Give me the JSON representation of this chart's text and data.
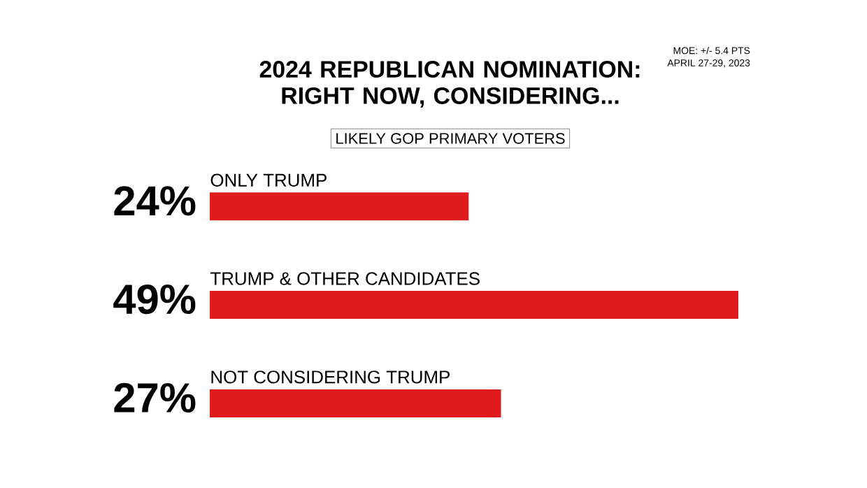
{
  "chart_data": {
    "type": "bar",
    "orientation": "horizontal",
    "title": "2024 REPUBLICAN NOMINATION: RIGHT NOW, CONSIDERING...",
    "subtitle": "LIKELY GOP PRIMARY VOTERS",
    "annotations": [
      "MOE: +/- 5.4 PTS",
      "APRIL 27-29, 2023"
    ],
    "categories": [
      "ONLY TRUMP",
      "TRUMP & OTHER CANDIDATES",
      "NOT CONSIDERING TRUMP"
    ],
    "values": [
      24,
      49,
      27
    ],
    "value_labels": [
      "24%",
      "49%",
      "27%"
    ],
    "color": "#e01b1b"
  }
}
